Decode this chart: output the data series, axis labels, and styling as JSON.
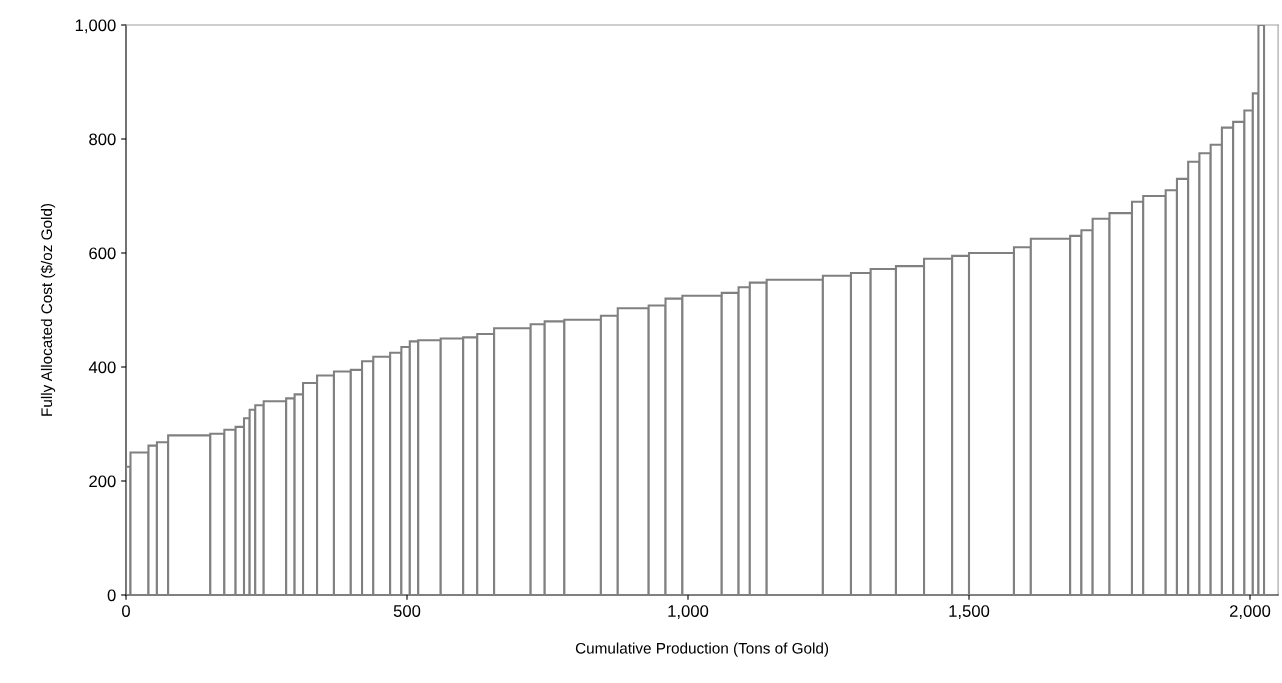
{
  "chart_data": {
    "type": "histogram",
    "xlabel": "Cumulative Production (Tons of Gold)",
    "ylabel": "Fully Allocated Cost ($/oz Gold)",
    "bins": [
      0,
      8,
      40,
      55,
      75,
      150,
      175,
      195,
      210,
      220,
      230,
      245,
      285,
      300,
      315,
      340,
      370,
      400,
      420,
      440,
      470,
      490,
      505,
      520,
      560,
      600,
      625,
      655,
      720,
      745,
      780,
      845,
      875,
      930,
      960,
      990,
      1060,
      1090,
      1110,
      1140,
      1240,
      1290,
      1325,
      1370,
      1420,
      1470,
      1500,
      1580,
      1610,
      1680,
      1700,
      1720,
      1750,
      1790,
      1810,
      1850,
      1870,
      1890,
      1910,
      1930,
      1950,
      1970,
      1990,
      2005,
      2015,
      2025
    ],
    "values": [
      225,
      250,
      262,
      268,
      280,
      283,
      290,
      295,
      310,
      325,
      333,
      340,
      345,
      352,
      372,
      385,
      392,
      395,
      410,
      418,
      425,
      435,
      445,
      447,
      450,
      452,
      458,
      468,
      475,
      480,
      483,
      490,
      503,
      508,
      520,
      525,
      530,
      540,
      548,
      553,
      560,
      565,
      572,
      577,
      590,
      595,
      600,
      610,
      625,
      630,
      640,
      660,
      670,
      690,
      700,
      710,
      730,
      760,
      775,
      790,
      820,
      830,
      850,
      880,
      1000
    ],
    "color": "#808080",
    "xlim": [
      0,
      2050
    ],
    "ylim": [
      0,
      1000
    ],
    "xticks": [
      0,
      {
        "value": 500,
        "label": "500"
      },
      {
        "value": 1000,
        "label": "1,000"
      },
      {
        "value": 1500,
        "label": "1,500"
      },
      {
        "value": 2000,
        "label": "2,000"
      }
    ],
    "yticks": [
      0,
      200,
      400,
      600,
      800,
      {
        "value": 1000,
        "label": "1,000"
      }
    ],
    "grid": false
  }
}
